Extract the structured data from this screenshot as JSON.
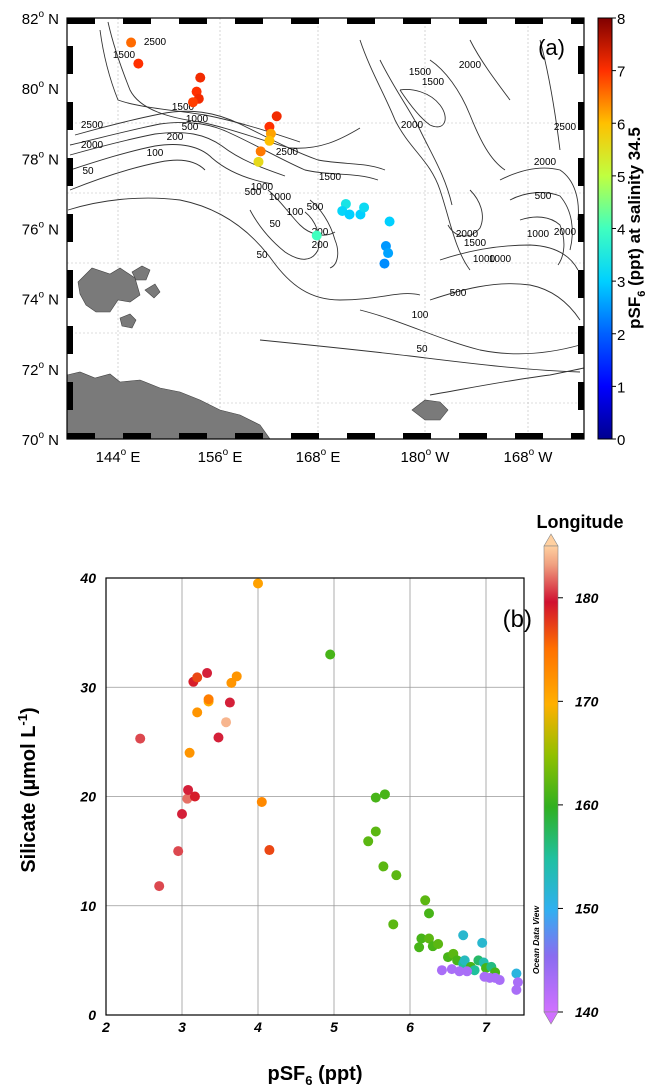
{
  "chart_data": [
    {
      "type": "scatter",
      "panel_label": "(a)",
      "y_ticks": [
        "82",
        "80",
        "78",
        "76",
        "74",
        "72",
        "70"
      ],
      "y_tick_suffix": "N",
      "x_ticks": [
        {
          "value": "144",
          "suffix": "E"
        },
        {
          "value": "156",
          "suffix": "E"
        },
        {
          "value": "168",
          "suffix": "E"
        },
        {
          "value": "180",
          "suffix": "W"
        },
        {
          "value": "168",
          "suffix": "W"
        }
      ],
      "colorbar": {
        "ticks": [
          "0",
          "1",
          "2",
          "3",
          "4",
          "5",
          "6",
          "7",
          "8"
        ],
        "label_main": "pSF",
        "label_sub": "6",
        "label_rest": " (ppt) at salinity 34.5",
        "range": [
          0,
          8
        ]
      },
      "contour_labels": [
        "2500",
        "1500",
        "2500",
        "2000",
        "1500",
        "1000",
        "500",
        "200",
        "100",
        "50",
        "2500",
        "500",
        "1000",
        "1500",
        "2000",
        "1500",
        "2000",
        "1500",
        "2500",
        "2000",
        "1000",
        "500",
        "100",
        "200",
        "50",
        "200",
        "1000",
        "500",
        "100",
        "50",
        "50",
        "2000",
        "1000",
        "500",
        "2000",
        "1500",
        "1000"
      ],
      "points": [
        {
          "lon": 147.0,
          "lat": 81.3,
          "value": 6.6
        },
        {
          "lon": 148.0,
          "lat": 80.7,
          "value": 7.0
        },
        {
          "lon": 156.5,
          "lat": 80.3,
          "value": 7.1
        },
        {
          "lon": 156.0,
          "lat": 79.9,
          "value": 7.0
        },
        {
          "lon": 156.3,
          "lat": 79.7,
          "value": 7.1
        },
        {
          "lon": 155.5,
          "lat": 79.6,
          "value": 6.9
        },
        {
          "lon": 166.0,
          "lat": 78.9,
          "value": 7.0
        },
        {
          "lon": 167.0,
          "lat": 79.2,
          "value": 7.1
        },
        {
          "lon": 166.2,
          "lat": 78.7,
          "value": 6.2
        },
        {
          "lon": 166.0,
          "lat": 78.5,
          "value": 6.0
        },
        {
          "lon": 164.8,
          "lat": 78.2,
          "value": 6.5
        },
        {
          "lon": 164.5,
          "lat": 77.9,
          "value": 5.6
        },
        {
          "lon": 176.5,
          "lat": 76.7,
          "value": 3.4
        },
        {
          "lon": 176.0,
          "lat": 76.5,
          "value": 3.1
        },
        {
          "lon": 177.0,
          "lat": 76.4,
          "value": 3.0
        },
        {
          "lon": 178.5,
          "lat": 76.4,
          "value": 3.0
        },
        {
          "lon": 179.0,
          "lat": 76.6,
          "value": 3.2
        },
        {
          "lon": 182.5,
          "lat": 76.2,
          "value": 3.0
        },
        {
          "lon": 172.5,
          "lat": 75.8,
          "value": 4.0
        },
        {
          "lon": 182.0,
          "lat": 75.5,
          "value": 2.5
        },
        {
          "lon": 182.3,
          "lat": 75.3,
          "value": 2.6
        },
        {
          "lon": 181.8,
          "lat": 75.0,
          "value": 2.4
        }
      ]
    },
    {
      "type": "scatter",
      "panel_label": "(b)",
      "xlabel_main": "pSF",
      "xlabel_sub": "6",
      "xlabel_rest": " (ppt)",
      "ylabel_main": "Silicate (µmol L",
      "ylabel_sup": "-1",
      "ylabel_rest": ")",
      "xlim": [
        2,
        7.5
      ],
      "ylim": [
        0,
        40
      ],
      "x_ticks": [
        "2",
        "3",
        "4",
        "5",
        "6",
        "7"
      ],
      "y_ticks": [
        "0",
        "10",
        "20",
        "30",
        "40"
      ],
      "grid": true,
      "colorbar": {
        "title": "Longitude",
        "ticks": [
          "140",
          "150",
          "160",
          "170",
          "180"
        ],
        "range": [
          140,
          185
        ],
        "vertical_text": "Ocean Data View"
      },
      "points": [
        {
          "x": 2.45,
          "y": 25.3,
          "lon": 181
        },
        {
          "x": 2.7,
          "y": 11.8,
          "lon": 181
        },
        {
          "x": 2.95,
          "y": 15.0,
          "lon": 181
        },
        {
          "x": 3.0,
          "y": 18.4,
          "lon": 180
        },
        {
          "x": 3.07,
          "y": 19.8,
          "lon": 182
        },
        {
          "x": 3.08,
          "y": 20.6,
          "lon": 180
        },
        {
          "x": 3.17,
          "y": 20.0,
          "lon": 179
        },
        {
          "x": 3.1,
          "y": 24.0,
          "lon": 172
        },
        {
          "x": 3.2,
          "y": 27.7,
          "lon": 172
        },
        {
          "x": 3.35,
          "y": 28.7,
          "lon": 170
        },
        {
          "x": 3.35,
          "y": 28.9,
          "lon": 174
        },
        {
          "x": 3.15,
          "y": 30.5,
          "lon": 179
        },
        {
          "x": 3.2,
          "y": 30.9,
          "lon": 177
        },
        {
          "x": 3.33,
          "y": 31.3,
          "lon": 180
        },
        {
          "x": 3.48,
          "y": 25.4,
          "lon": 180
        },
        {
          "x": 3.58,
          "y": 26.8,
          "lon": 184
        },
        {
          "x": 3.63,
          "y": 28.6,
          "lon": 180
        },
        {
          "x": 3.65,
          "y": 30.4,
          "lon": 172
        },
        {
          "x": 3.72,
          "y": 31.0,
          "lon": 172
        },
        {
          "x": 4.0,
          "y": 39.5,
          "lon": 171
        },
        {
          "x": 4.05,
          "y": 19.5,
          "lon": 173
        },
        {
          "x": 4.15,
          "y": 15.1,
          "lon": 177
        },
        {
          "x": 4.95,
          "y": 33.0,
          "lon": 161
        },
        {
          "x": 5.45,
          "y": 15.9,
          "lon": 162
        },
        {
          "x": 5.55,
          "y": 19.9,
          "lon": 161
        },
        {
          "x": 5.55,
          "y": 16.8,
          "lon": 162
        },
        {
          "x": 5.67,
          "y": 20.2,
          "lon": 161
        },
        {
          "x": 5.65,
          "y": 13.6,
          "lon": 162
        },
        {
          "x": 5.82,
          "y": 12.8,
          "lon": 162
        },
        {
          "x": 5.78,
          "y": 8.3,
          "lon": 162
        },
        {
          "x": 6.2,
          "y": 10.5,
          "lon": 162
        },
        {
          "x": 6.25,
          "y": 9.3,
          "lon": 161
        },
        {
          "x": 6.12,
          "y": 6.2,
          "lon": 161
        },
        {
          "x": 6.15,
          "y": 7.0,
          "lon": 161
        },
        {
          "x": 6.25,
          "y": 7.0,
          "lon": 162
        },
        {
          "x": 6.3,
          "y": 6.3,
          "lon": 161
        },
        {
          "x": 6.37,
          "y": 6.5,
          "lon": 162
        },
        {
          "x": 6.5,
          "y": 5.3,
          "lon": 161
        },
        {
          "x": 6.57,
          "y": 5.6,
          "lon": 162
        },
        {
          "x": 6.62,
          "y": 5.0,
          "lon": 161
        },
        {
          "x": 6.7,
          "y": 4.7,
          "lon": 155
        },
        {
          "x": 6.72,
          "y": 5.0,
          "lon": 153
        },
        {
          "x": 6.8,
          "y": 4.4,
          "lon": 161
        },
        {
          "x": 6.85,
          "y": 4.1,
          "lon": 155
        },
        {
          "x": 6.9,
          "y": 5.0,
          "lon": 157
        },
        {
          "x": 6.97,
          "y": 4.8,
          "lon": 154
        },
        {
          "x": 7.0,
          "y": 4.3,
          "lon": 161
        },
        {
          "x": 7.07,
          "y": 4.4,
          "lon": 156
        },
        {
          "x": 7.12,
          "y": 3.9,
          "lon": 161
        },
        {
          "x": 6.7,
          "y": 7.3,
          "lon": 152
        },
        {
          "x": 6.95,
          "y": 6.6,
          "lon": 152
        },
        {
          "x": 7.4,
          "y": 3.8,
          "lon": 151
        },
        {
          "x": 6.42,
          "y": 4.1,
          "lon": 143
        },
        {
          "x": 6.55,
          "y": 4.2,
          "lon": 143
        },
        {
          "x": 6.65,
          "y": 4.0,
          "lon": 143
        },
        {
          "x": 6.75,
          "y": 4.0,
          "lon": 143
        },
        {
          "x": 6.98,
          "y": 3.5,
          "lon": 143
        },
        {
          "x": 7.05,
          "y": 3.4,
          "lon": 143
        },
        {
          "x": 7.12,
          "y": 3.4,
          "lon": 143
        },
        {
          "x": 7.18,
          "y": 3.2,
          "lon": 143
        },
        {
          "x": 7.42,
          "y": 3.0,
          "lon": 143
        },
        {
          "x": 7.4,
          "y": 2.3,
          "lon": 143
        }
      ]
    }
  ]
}
